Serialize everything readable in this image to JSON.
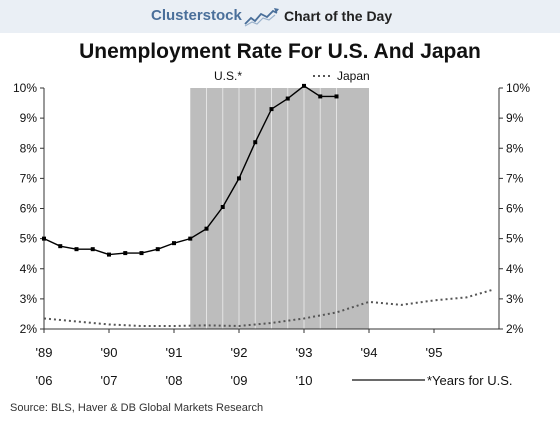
{
  "header": {
    "brand": "Clusterstock",
    "brand_icon": "rising-line-chart-icon",
    "tagline": "Chart of the Day",
    "background": "#eaeff5",
    "brand_color": "#4a6f9a"
  },
  "chart_data": {
    "type": "line",
    "title": "Unemployment Rate For U.S. And Japan",
    "legend_position": "top",
    "grid": false,
    "recession_shading": {
      "from": 1991.25,
      "to": 1994.0,
      "color": "#bdbdbd"
    },
    "y_axis": {
      "ylim": [
        2,
        10
      ],
      "ticks": [
        2,
        3,
        4,
        5,
        6,
        7,
        8,
        9,
        10
      ],
      "tick_labels": [
        "2%",
        "3%",
        "4%",
        "5%",
        "6%",
        "7%",
        "8%",
        "9%",
        "10%"
      ],
      "both_sides": true
    },
    "x_axis": {
      "xlim": [
        1989,
        1996
      ],
      "japan_ticks": [
        1989,
        1990,
        1991,
        1992,
        1993,
        1994,
        1995
      ],
      "japan_labels": [
        "'89",
        "'90",
        "'91",
        "'92",
        "'93",
        "'94",
        "'95"
      ],
      "us_ticks": [
        1989,
        1990,
        1991,
        1992,
        1993
      ],
      "us_labels": [
        "'06",
        "'07",
        "'08",
        "'09",
        "'10"
      ],
      "us_note": "*Years for U.S."
    },
    "series": [
      {
        "name": "U.S.*",
        "style": "solid-markers",
        "color": "#000000",
        "x": [
          1989.0,
          1989.25,
          1989.5,
          1989.75,
          1990.0,
          1990.25,
          1990.5,
          1990.75,
          1991.0,
          1991.25,
          1991.5,
          1991.75,
          1992.0,
          1992.25,
          1992.5,
          1992.75,
          1993.0,
          1993.25,
          1993.5
        ],
        "values": [
          5.0,
          4.75,
          4.65,
          4.65,
          4.47,
          4.52,
          4.52,
          4.65,
          4.85,
          5.0,
          5.33,
          6.05,
          7.0,
          8.2,
          9.3,
          9.65,
          10.07,
          9.72,
          9.72
        ]
      },
      {
        "name": "Japan",
        "style": "dotted",
        "color": "#555555",
        "x": [
          1989.0,
          1989.5,
          1990.0,
          1990.5,
          1991.0,
          1991.5,
          1992.0,
          1992.5,
          1993.0,
          1993.5,
          1994.0,
          1994.5,
          1995.0,
          1995.5,
          1995.9
        ],
        "values": [
          2.35,
          2.25,
          2.15,
          2.1,
          2.1,
          2.12,
          2.1,
          2.2,
          2.35,
          2.55,
          2.9,
          2.8,
          2.95,
          3.05,
          3.3
        ]
      }
    ]
  },
  "footer": {
    "source": "Source: BLS, Haver & DB Global Markets Research"
  }
}
